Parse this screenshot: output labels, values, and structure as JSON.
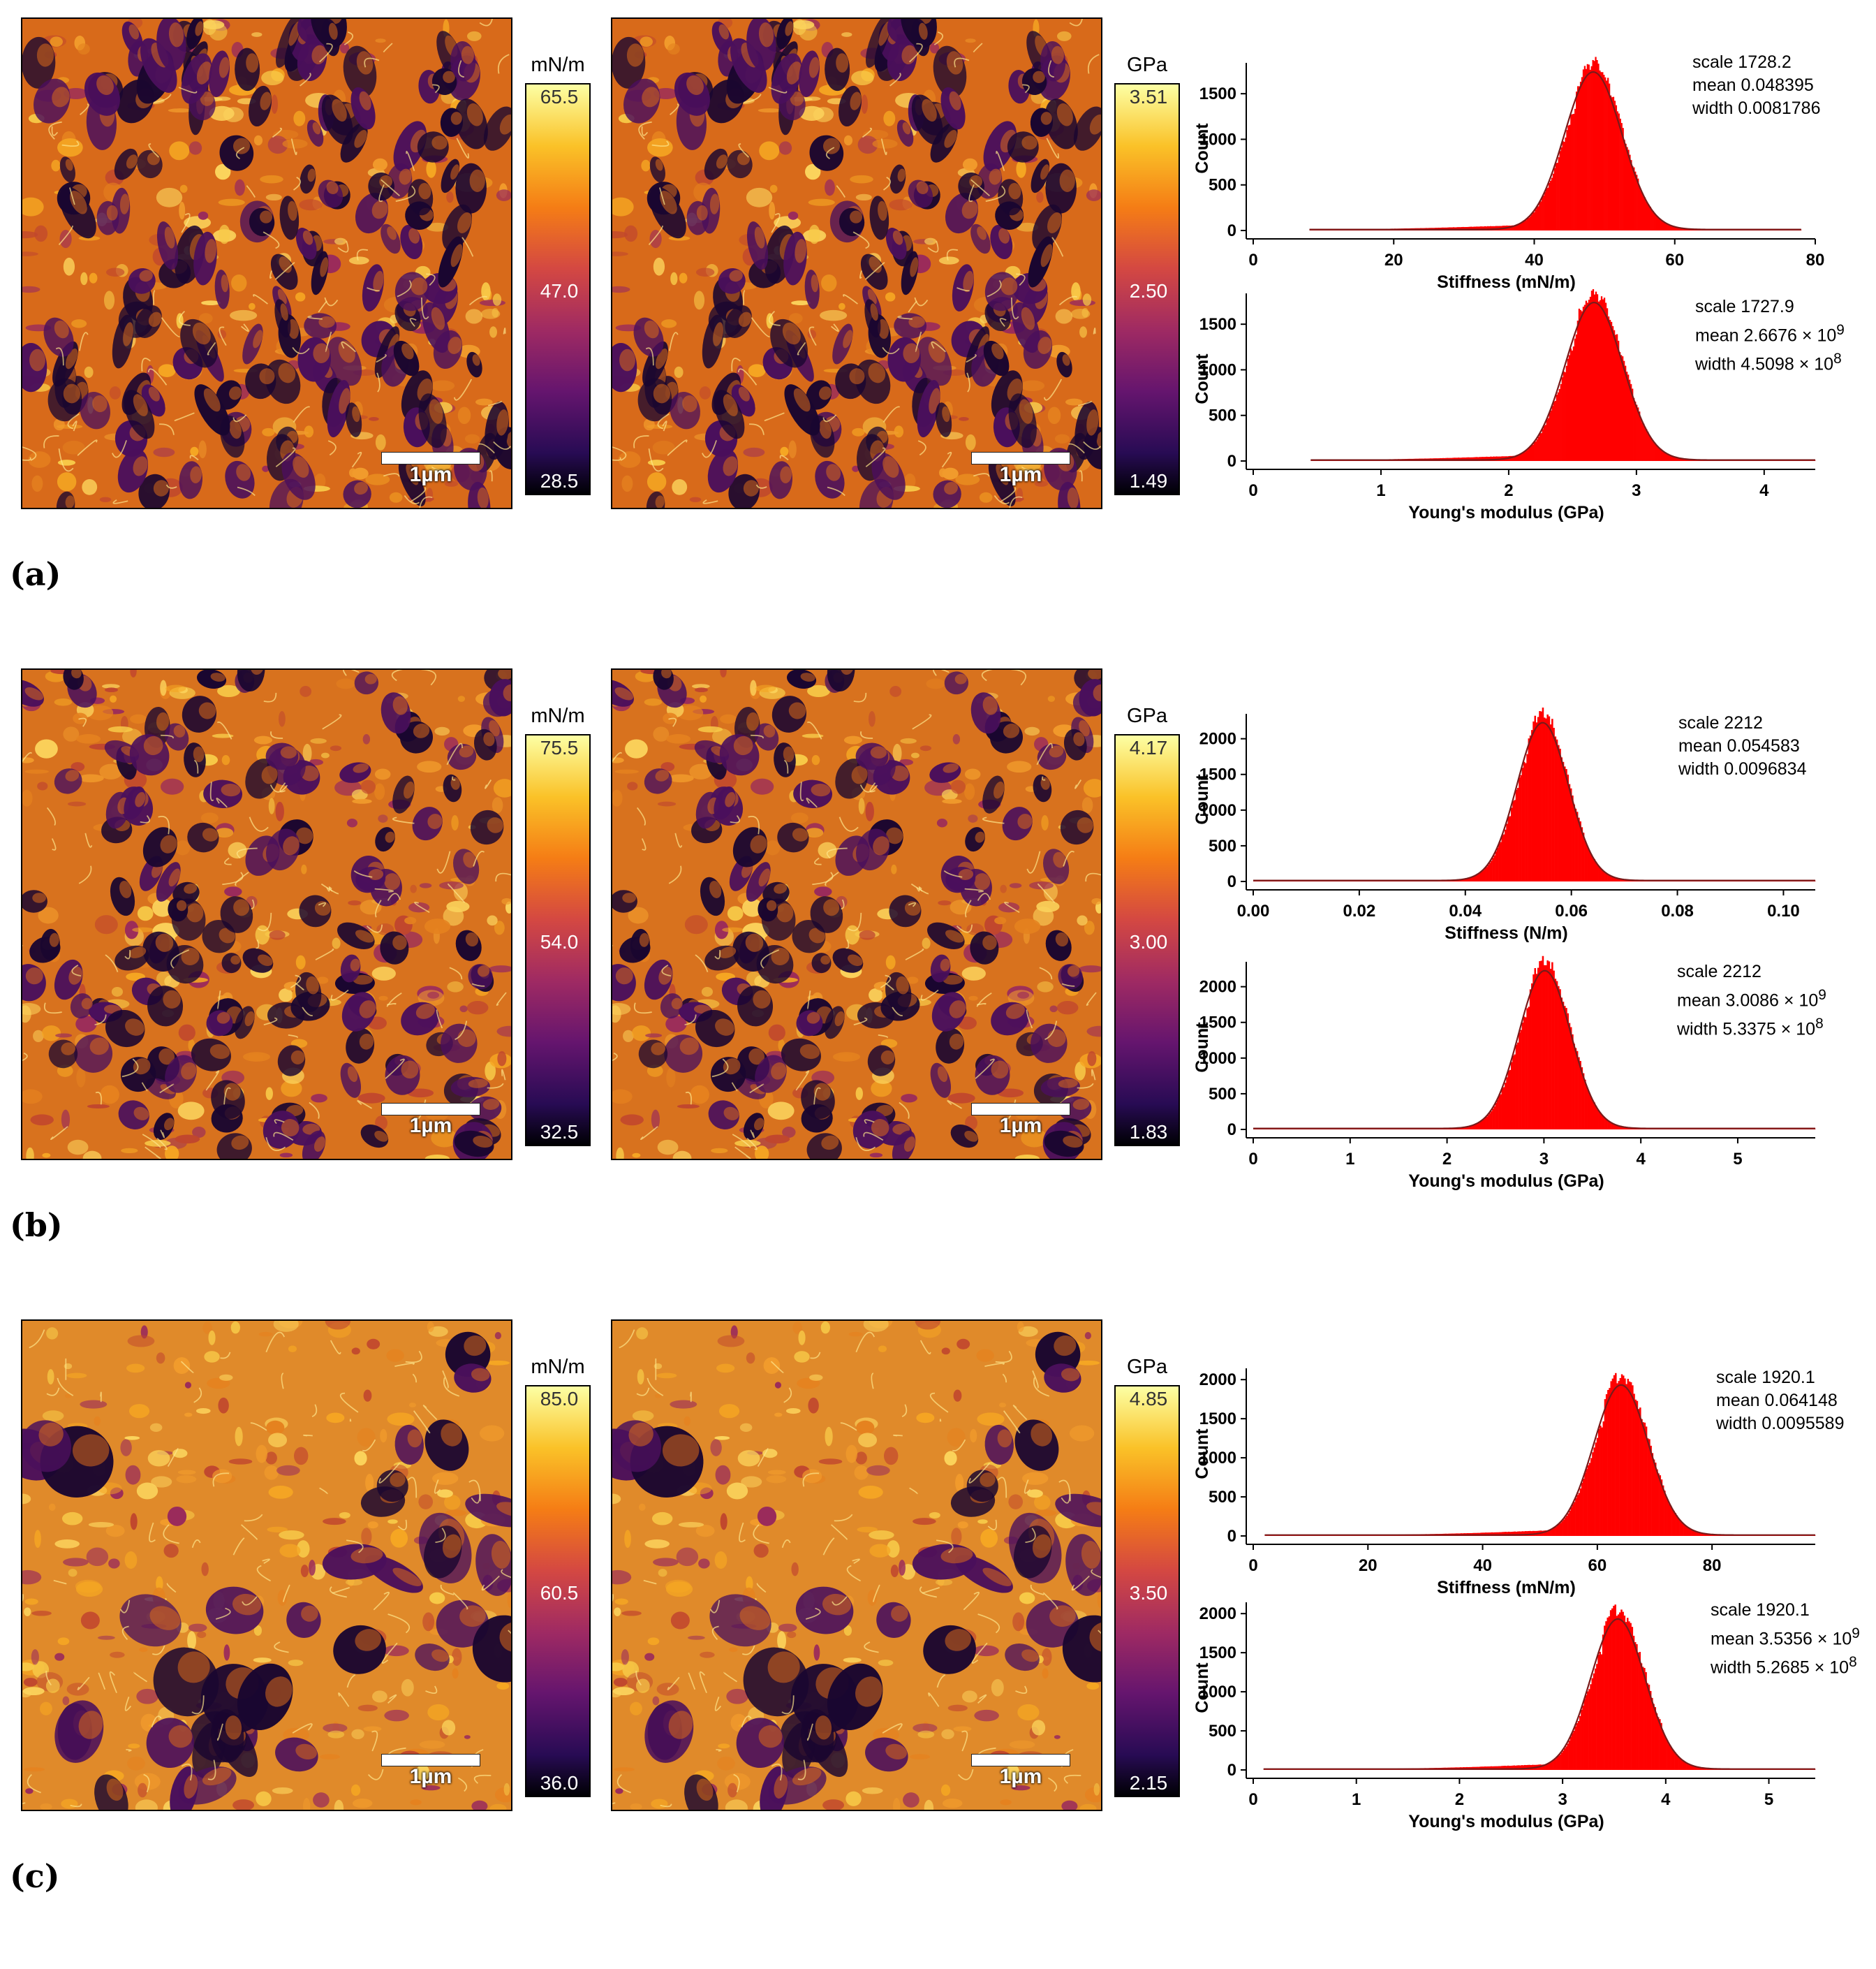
{
  "colors": {
    "hist_fill": "#ff0000",
    "fit_line": "#7a1a1a"
  },
  "panels": [
    {
      "label": "(a)",
      "scale_bar": "1µm",
      "stiffness_map": {
        "unit": "mN/m",
        "max": "65.5",
        "mid": "47.0",
        "min": "28.5"
      },
      "modulus_map": {
        "unit": "GPa",
        "max": "3.51",
        "mid": "2.50",
        "min": "1.49"
      },
      "stiffness_stats": {
        "scale": "scale 1728.2",
        "mean": "mean 0.048395",
        "width": "width 0.0081786"
      },
      "modulus_stats": {
        "scale": "scale 1727.9",
        "mean_prefix": "mean 2.6676 × 10",
        "mean_exp": "9",
        "width_prefix": "width 4.5098 × 10",
        "width_exp": "8"
      }
    },
    {
      "label": "(b)",
      "scale_bar": "1µm",
      "stiffness_map": {
        "unit": "mN/m",
        "max": "75.5",
        "mid": "54.0",
        "min": "32.5"
      },
      "modulus_map": {
        "unit": "GPa",
        "max": "4.17",
        "mid": "3.00",
        "min": "1.83"
      },
      "stiffness_stats": {
        "scale": "scale 2212",
        "mean": "mean 0.054583",
        "width": "width 0.0096834"
      },
      "modulus_stats": {
        "scale": "scale 2212",
        "mean_prefix": "mean 3.0086 × 10",
        "mean_exp": "9",
        "width_prefix": "width 5.3375 × 10",
        "width_exp": "8"
      }
    },
    {
      "label": "(c)",
      "scale_bar": "1µm",
      "stiffness_map": {
        "unit": "mN/m",
        "max": "85.0",
        "mid": "60.5",
        "min": "36.0"
      },
      "modulus_map": {
        "unit": "GPa",
        "max": "4.85",
        "mid": "3.50",
        "min": "2.15"
      },
      "stiffness_stats": {
        "scale": "scale 1920.1",
        "mean": "mean 0.064148",
        "width": "width 0.0095589"
      },
      "modulus_stats": {
        "scale": "scale 1920.1",
        "mean_prefix": "mean 3.5356 × 10",
        "mean_exp": "9",
        "width_prefix": "width 5.2685 × 10",
        "width_exp": "8"
      }
    }
  ],
  "chart_data": [
    {
      "id": "a-stiffness",
      "type": "bar",
      "xlabel": "Stiffness (mN/m)",
      "ylabel": "Count",
      "xlim": [
        0,
        80
      ],
      "ylim": [
        0,
        1800
      ],
      "xticks": [
        "0",
        "20",
        "40",
        "60",
        "80"
      ],
      "yticks": [
        "0",
        "500",
        "1000",
        "1500"
      ],
      "data_range": [
        8,
        78
      ],
      "fit": {
        "scale": 1728.2,
        "mean": 48.395,
        "width": 8.1786
      },
      "skew": 0.3
    },
    {
      "id": "a-modulus",
      "type": "bar",
      "xlabel": "Young's modulus (GPa)",
      "ylabel": "Count",
      "xlim": [
        0,
        4.4
      ],
      "ylim": [
        0,
        1800
      ],
      "xticks": [
        "0",
        "1",
        "2",
        "3",
        "4"
      ],
      "yticks": [
        "0",
        "500",
        "1000",
        "1500"
      ],
      "data_range": [
        0.45,
        4.4
      ],
      "fit": {
        "scale": 1727.9,
        "mean": 2.6676,
        "width": 0.45098
      },
      "skew": 0.3
    },
    {
      "id": "b-stiffness",
      "type": "bar",
      "xlabel": "Stiffness (N/m)",
      "ylabel": "Count",
      "xlim": [
        0,
        0.106
      ],
      "ylim": [
        0,
        2300
      ],
      "xticks": [
        "0.00",
        "0.02",
        "0.04",
        "0.06",
        "0.08",
        "0.10"
      ],
      "yticks": [
        "0",
        "500",
        "1000",
        "1500",
        "2000"
      ],
      "data_range": [
        0,
        0.106
      ],
      "fit": {
        "scale": 2212,
        "mean": 0.054583,
        "width": 0.0096834
      },
      "skew": 0.05
    },
    {
      "id": "b-modulus",
      "type": "bar",
      "xlabel": "Young's modulus (GPa)",
      "ylabel": "Count",
      "xlim": [
        0,
        5.8
      ],
      "ylim": [
        0,
        2300
      ],
      "xticks": [
        "0",
        "1",
        "2",
        "3",
        "4",
        "5"
      ],
      "yticks": [
        "0",
        "500",
        "1000",
        "1500",
        "2000"
      ],
      "data_range": [
        0,
        5.8
      ],
      "fit": {
        "scale": 2212,
        "mean": 3.0086,
        "width": 0.53375
      },
      "skew": 0.05
    },
    {
      "id": "c-stiffness",
      "type": "bar",
      "xlabel": "Stiffness (mN/m)",
      "ylabel": "Count",
      "xlim": [
        0,
        98
      ],
      "ylim": [
        0,
        2100
      ],
      "xticks": [
        "0",
        "20",
        "40",
        "60",
        "80"
      ],
      "yticks": [
        "0",
        "500",
        "1000",
        "1500",
        "2000"
      ],
      "data_range": [
        2,
        98
      ],
      "fit": {
        "scale": 1920.1,
        "mean": 64.148,
        "width": 9.5589
      },
      "skew": 0.35
    },
    {
      "id": "c-modulus",
      "type": "bar",
      "xlabel": "Young's modulus (GPa)",
      "ylabel": "Count",
      "xlim": [
        0,
        5.45
      ],
      "ylim": [
        0,
        2100
      ],
      "xticks": [
        "0",
        "1",
        "2",
        "3",
        "4",
        "5"
      ],
      "yticks": [
        "0",
        "500",
        "1000",
        "1500",
        "2000"
      ],
      "data_range": [
        0.1,
        5.45
      ],
      "fit": {
        "scale": 1920.1,
        "mean": 3.5356,
        "width": 0.52685
      },
      "skew": 0.35
    }
  ]
}
